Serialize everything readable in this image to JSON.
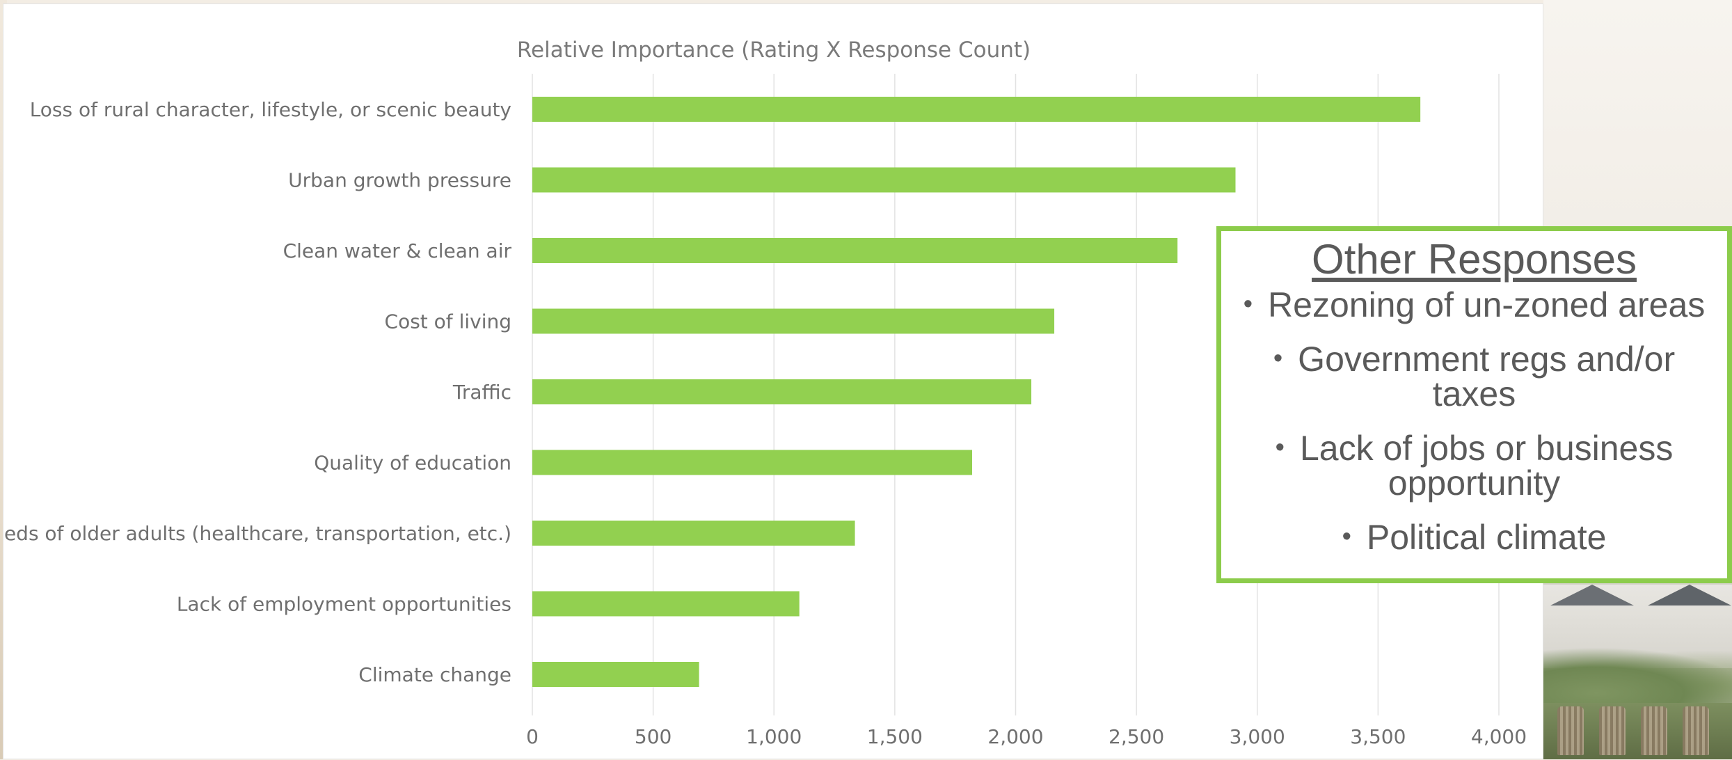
{
  "chart_data": {
    "type": "bar",
    "orientation": "horizontal",
    "title": "Relative Importance (Rating X Response Count)",
    "xlabel": "",
    "ylabel": "",
    "categories": [
      "Loss of rural character, lifestyle, or scenic beauty",
      "Urban growth pressure",
      "Clean water & clean air",
      "Cost of living",
      "Traffic",
      "Quality of education",
      "Needs of older adults (healthcare, transportation, etc.)",
      "Lack of employment opportunities",
      "Climate change"
    ],
    "values": [
      3675,
      2910,
      2670,
      2160,
      2065,
      1820,
      1335,
      1105,
      690
    ],
    "xlim": [
      0,
      4000
    ],
    "x_ticks": [
      0,
      500,
      1000,
      1500,
      2000,
      2500,
      3000,
      3500,
      4000
    ],
    "x_tick_labels": [
      "0",
      "500",
      "1,000",
      "1,500",
      "2,000",
      "2,500",
      "3,000",
      "3,500",
      "4,000"
    ],
    "grid": "vertical",
    "legend": "none",
    "bar_color": "#92d050"
  },
  "other_responses": {
    "title": "Other Responses",
    "bullet": "•",
    "items": [
      "Rezoning of un-zoned areas",
      "Government regs and/or taxes",
      "Lack of jobs or business opportunity",
      "Political climate"
    ],
    "border_color": "#8ccc4b"
  }
}
